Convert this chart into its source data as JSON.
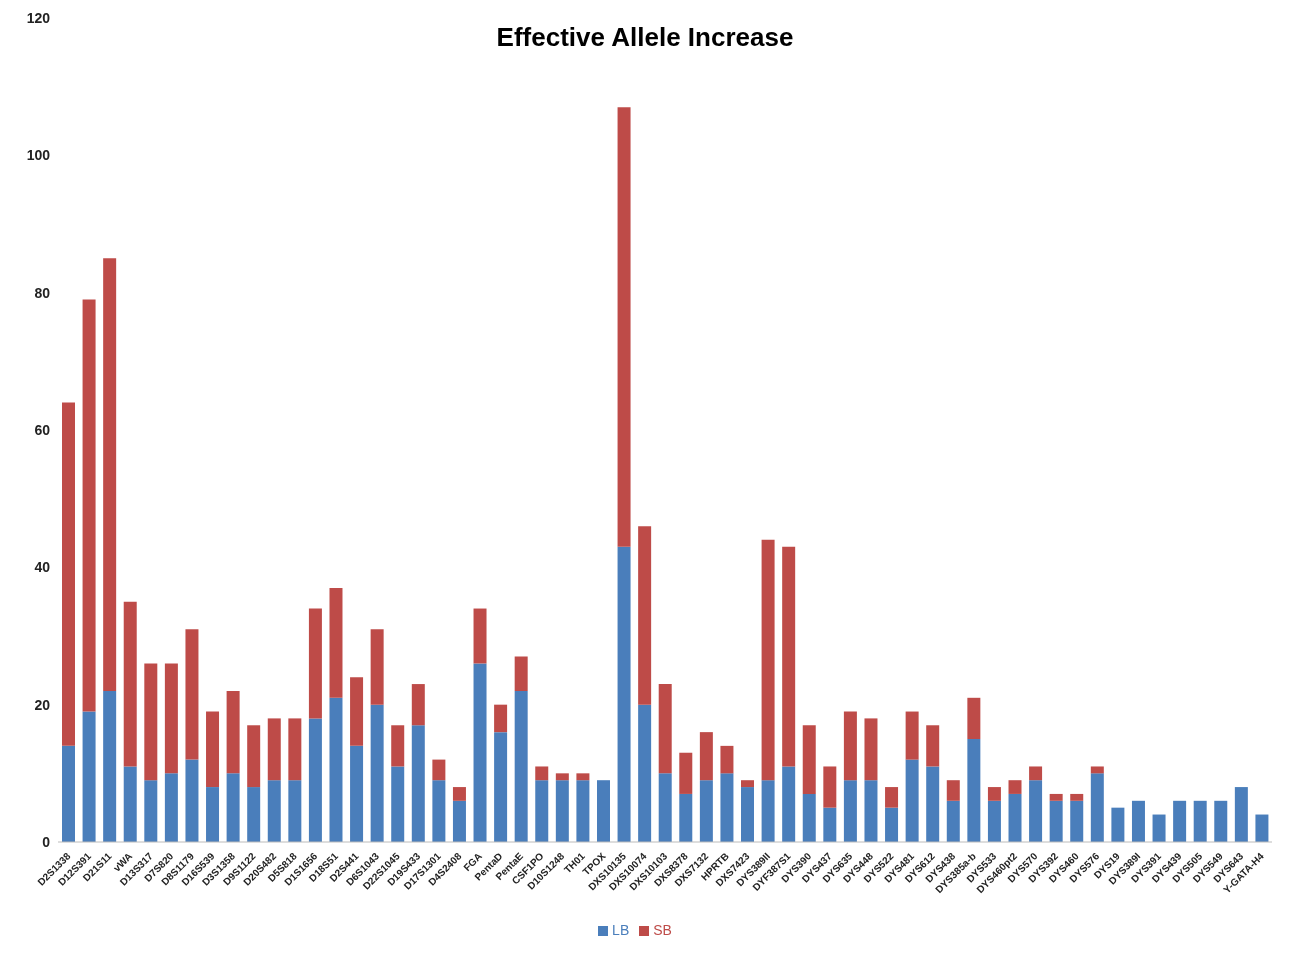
{
  "chart_data": {
    "type": "bar",
    "title": "Effective Allele Increase",
    "stacked": true,
    "categories": [
      "D2S1338",
      "D12S391",
      "D21S11",
      "vWA",
      "D13S317",
      "D7S820",
      "D8S1179",
      "D16S539",
      "D3S1358",
      "D9S1122",
      "D20S482",
      "D5S818",
      "D1S1656",
      "D18S51",
      "D2S441",
      "D6S1043",
      "D22S1045",
      "D19S433",
      "D17S1301",
      "D4S2408",
      "FGA",
      "PentaD",
      "PentaE",
      "CSF1PO",
      "D10S1248",
      "TH01",
      "TPOX",
      "DXS10135",
      "DXS10074",
      "DXS10103",
      "DXS8378",
      "DXS7132",
      "HPRTB",
      "DXS7423",
      "DYS389II",
      "DYF387S1",
      "DYS390",
      "DYS437",
      "DYS635",
      "DYS448",
      "DYS522",
      "DYS481",
      "DYS612",
      "DYS438",
      "DYS385a-b",
      "DYS533",
      "DYS460pt2",
      "DYS570",
      "DYS392",
      "DYS460",
      "DYS576",
      "DYS19",
      "DYS389I",
      "DYS391",
      "DYS439",
      "DYS505",
      "DYS549",
      "DYS643",
      "Y-GATA-H4"
    ],
    "series": [
      {
        "name": "LB",
        "color": "#4a7ebb",
        "values": [
          14,
          19,
          22,
          11,
          9,
          10,
          12,
          8,
          10,
          8,
          9,
          9,
          18,
          21,
          14,
          20,
          11,
          17,
          9,
          6,
          26,
          16,
          22,
          9,
          9,
          9,
          9,
          43,
          20,
          10,
          7,
          9,
          10,
          8,
          9,
          11,
          7,
          5,
          9,
          9,
          5,
          12,
          11,
          6,
          15,
          6,
          7,
          9,
          6,
          6,
          10,
          5,
          6,
          4,
          6,
          6,
          6,
          8,
          4
        ]
      },
      {
        "name": "SB",
        "color": "#be4b48",
        "values": [
          50,
          60,
          63,
          24,
          17,
          16,
          19,
          11,
          12,
          9,
          9,
          9,
          16,
          16,
          10,
          11,
          6,
          6,
          3,
          2,
          8,
          4,
          5,
          2,
          1,
          1,
          0,
          64,
          26,
          13,
          6,
          7,
          4,
          1,
          35,
          32,
          10,
          6,
          10,
          9,
          3,
          7,
          6,
          3,
          6,
          2,
          2,
          2,
          1,
          1,
          1,
          0,
          0,
          0,
          0,
          0,
          0,
          0,
          0
        ]
      }
    ],
    "ylim": [
      0,
      120
    ],
    "yticks": [
      0,
      20,
      40,
      60,
      80,
      100,
      120
    ],
    "legend": "bottom"
  }
}
